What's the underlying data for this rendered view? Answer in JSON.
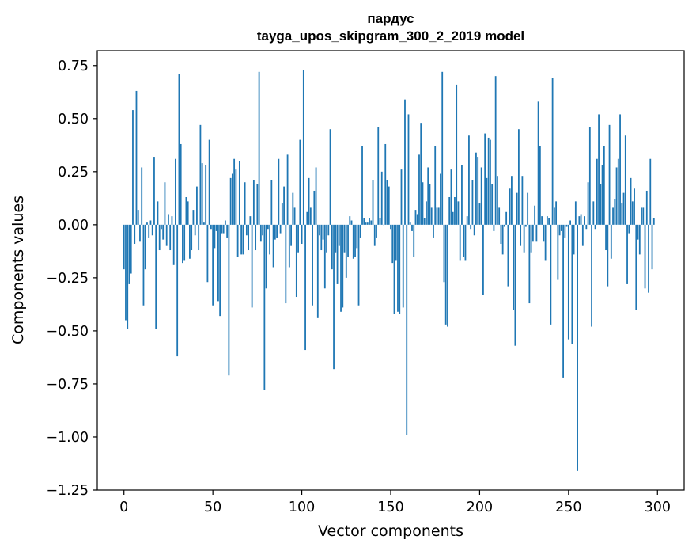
{
  "chart_data": {
    "type": "bar",
    "title": "пардус",
    "subtitle": "tayga_upos_skipgram_300_2_2019 model",
    "xlabel": "Vector components",
    "ylabel": "Components values",
    "xlim": [
      -15,
      315
    ],
    "ylim": [
      -1.25,
      0.82
    ],
    "xticks": [
      0,
      50,
      100,
      150,
      200,
      250,
      300
    ],
    "xtick_labels": [
      "0",
      "50",
      "100",
      "150",
      "200",
      "250",
      "300"
    ],
    "yticks": [
      -1.25,
      -1.0,
      -0.75,
      -0.5,
      -0.25,
      0.0,
      0.25,
      0.5,
      0.75
    ],
    "ytick_labels": [
      "−1.25",
      "−1.00",
      "−0.75",
      "−0.50",
      "−0.25",
      "0.00",
      "0.25",
      "0.50",
      "0.75"
    ],
    "grid": false,
    "bar_color": "#1f77b4",
    "values": [
      -0.21,
      -0.45,
      -0.49,
      -0.28,
      -0.23,
      0.54,
      -0.09,
      0.63,
      0.07,
      -0.08,
      0.27,
      -0.38,
      -0.21,
      0.01,
      -0.06,
      0.02,
      -0.05,
      0.32,
      -0.49,
      0.11,
      -0.12,
      -0.02,
      -0.07,
      0.2,
      -0.1,
      0.05,
      -0.12,
      0.04,
      -0.19,
      0.31,
      -0.62,
      0.71,
      0.38,
      -0.18,
      -0.17,
      0.13,
      0.11,
      -0.16,
      -0.12,
      0.07,
      -0.05,
      0.18,
      -0.12,
      0.47,
      0.29,
      0.01,
      0.28,
      -0.27,
      0.4,
      -0.02,
      -0.38,
      -0.11,
      -0.03,
      -0.36,
      -0.43,
      -0.04,
      -0.04,
      0.02,
      -0.06,
      -0.71,
      0.22,
      0.24,
      0.31,
      0.26,
      -0.15,
      0.3,
      -0.14,
      -0.14,
      0.2,
      -0.05,
      -0.12,
      0.04,
      -0.39,
      0.21,
      -0.12,
      0.19,
      0.72,
      -0.08,
      -0.05,
      -0.78,
      -0.3,
      -0.02,
      -0.14,
      0.21,
      -0.2,
      -0.07,
      -0.06,
      0.31,
      -0.04,
      0.1,
      0.18,
      -0.37,
      0.33,
      -0.2,
      -0.1,
      0.15,
      0.08,
      -0.34,
      -0.13,
      0.4,
      -0.09,
      0.73,
      -0.59,
      0.06,
      0.22,
      0.08,
      -0.38,
      0.16,
      0.27,
      -0.44,
      -0.05,
      -0.12,
      -0.07,
      -0.3,
      -0.13,
      -0.05,
      0.45,
      -0.21,
      -0.68,
      -0.13,
      -0.28,
      -0.1,
      -0.41,
      -0.39,
      -0.13,
      -0.25,
      -0.15,
      0.04,
      0.02,
      -0.16,
      -0.15,
      -0.11,
      -0.38,
      -0.06,
      0.37,
      0.03,
      0.01,
      0.01,
      0.03,
      0.02,
      0.21,
      -0.1,
      -0.06,
      0.46,
      0.03,
      0.25,
      0.0,
      0.38,
      0.21,
      0.18,
      -0.02,
      -0.18,
      -0.42,
      -0.17,
      -0.41,
      -0.42,
      0.26,
      -0.39,
      0.59,
      -0.99,
      0.52,
      0.01,
      -0.03,
      -0.15,
      0.07,
      0.05,
      0.33,
      0.48,
      0.2,
      0.03,
      0.11,
      0.27,
      0.19,
      0.08,
      -0.06,
      0.37,
      0.08,
      0.08,
      0.24,
      0.72,
      -0.27,
      -0.47,
      -0.48,
      0.13,
      0.26,
      0.06,
      0.13,
      0.66,
      0.11,
      -0.17,
      0.28,
      -0.15,
      -0.17,
      0.04,
      0.42,
      -0.02,
      0.21,
      -0.05,
      0.34,
      0.32,
      0.1,
      0.27,
      -0.33,
      0.43,
      0.22,
      0.41,
      0.4,
      0.19,
      -0.03,
      0.7,
      0.23,
      0.08,
      -0.09,
      -0.14,
      -0.01,
      0.06,
      -0.29,
      0.17,
      0.23,
      -0.4,
      -0.57,
      0.15,
      0.45,
      -0.1,
      0.23,
      -0.13,
      -0.01,
      0.15,
      -0.37,
      -0.13,
      -0.08,
      0.09,
      -0.08,
      0.58,
      0.37,
      0.04,
      -0.08,
      -0.17,
      0.04,
      0.03,
      -0.47,
      0.69,
      0.08,
      0.11,
      -0.26,
      -0.05,
      -0.03,
      -0.72,
      -0.06,
      -0.01,
      -0.54,
      0.02,
      -0.56,
      -0.14,
      0.11,
      -1.16,
      0.04,
      0.05,
      -0.1,
      0.04,
      -0.02,
      0.2,
      0.46,
      -0.48,
      0.11,
      -0.02,
      0.31,
      0.52,
      0.19,
      0.28,
      0.37,
      -0.12,
      -0.29,
      0.47,
      -0.16,
      0.08,
      0.12,
      0.27,
      0.31,
      0.52,
      0.1,
      0.15,
      0.42,
      -0.28,
      -0.04,
      0.22,
      0.11,
      0.17,
      -0.4,
      -0.07,
      -0.14,
      0.08,
      0.08,
      -0.3,
      0.16,
      -0.32,
      0.31,
      -0.21,
      0.03
    ]
  }
}
